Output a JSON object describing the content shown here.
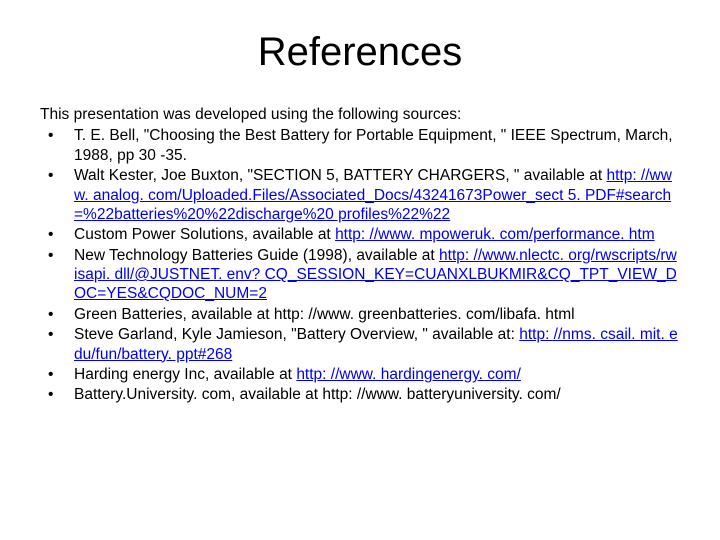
{
  "title": "References",
  "intro": "This presentation was developed using the following sources:",
  "refs": {
    "r0": {
      "text": "T. E. Bell, \"Choosing the Best Battery for Portable Equipment, \" IEEE Spectrum, March, 1988, pp 30 -35."
    },
    "r1": {
      "prefix": "Walt Kester, Joe Buxton, \"SECTION 5, BATTERY CHARGERS, \" available at ",
      "link": "http: //www. analog. com/Uploaded.Files/Associated_Docs/43241673Power_sect 5. PDF#search=%22batteries%20%22discharge%20 profiles%22%22"
    },
    "r2": {
      "prefix": "Custom Power Solutions, available at ",
      "link": "http: //www. mpoweruk. com/performance. htm"
    },
    "r3": {
      "prefix": "New Technology Batteries Guide (1998), available at ",
      "link": "http: //www.nlectc. org/rwscripts/rwisapi. dll/@JUSTNET. env? CQ_SESSION_KEY=CUANXLBUKMIR&CQ_TPT_VIEW_DOC=YES&CQDOC_NUM=2"
    },
    "r4": {
      "text": "Green Batteries, available at http: //www. greenbatteries. com/libafa. html"
    },
    "r5": {
      "prefix": "Steve Garland, Kyle Jamieson, \"Battery Overview, \" available at: ",
      "link": "http: //nms. csail. mit. edu/fun/battery. ppt#268"
    },
    "r6": {
      "prefix": "Harding energy Inc, available at ",
      "link": "http: //www. hardingenergy. com/"
    },
    "r7": {
      "text": "Battery.University. com, available at http: //www. batteryuniversity. com/"
    }
  },
  "colors": {
    "background": "#ffffff",
    "text": "#000000",
    "link": "#0000ee"
  },
  "typography": {
    "title_fontsize": 40,
    "body_fontsize": 15.5,
    "font_family": "Arial"
  }
}
